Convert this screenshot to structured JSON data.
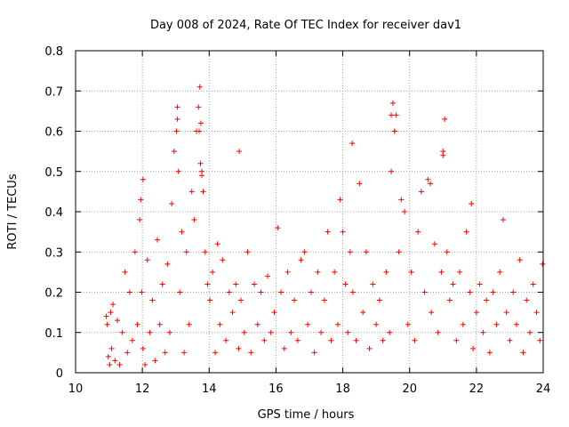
{
  "chart_data": {
    "type": "scatter",
    "title": "Day 008 of 2024, Rate Of TEC Index for receiver dav1",
    "xlabel": "GPS time / hours",
    "ylabel": "ROTI / TECUs",
    "xlim": [
      10,
      24
    ],
    "ylim": [
      0,
      0.8
    ],
    "x_ticks": [
      "10",
      "12",
      "14",
      "16",
      "18",
      "20",
      "22",
      "24"
    ],
    "y_ticks": [
      "0",
      "0.1",
      "0.2",
      "0.3",
      "0.4",
      "0.5",
      "0.6",
      "0.7",
      "0.8"
    ],
    "grid": true,
    "marker": "+",
    "colors": {
      "points": "#ff0000"
    },
    "series": [
      {
        "x": [
          10.92,
          10.95,
          10.98,
          11.02,
          11.05,
          11.08,
          11.12,
          11.18,
          11.25,
          11.32,
          11.4,
          11.48,
          11.55,
          11.62,
          11.7,
          11.78,
          11.85,
          11.92,
          11.95,
          11.98,
          12.02,
          12.08,
          12.15,
          12.22,
          12.3,
          12.38,
          12.45,
          12.52,
          12.6,
          12.68,
          12.75,
          12.82,
          12.88,
          12.95,
          13.02,
          13.05,
          13.08,
          13.12,
          13.18,
          13.25,
          13.32,
          13.4,
          13.48,
          13.55,
          13.62,
          13.68,
          13.72,
          13.75,
          13.78,
          13.82,
          13.88,
          13.95,
          14.02,
          14.1,
          14.18,
          14.25,
          14.32,
          14.4,
          14.5,
          14.6,
          14.7,
          14.8,
          14.88,
          14.95,
          15.05,
          15.15,
          15.25,
          15.35,
          15.45,
          15.55,
          15.65,
          15.75,
          15.85,
          15.95,
          16.05,
          16.15,
          16.25,
          16.35,
          16.45,
          16.55,
          16.65,
          16.75,
          16.85,
          16.95,
          17.05,
          17.15,
          17.25,
          17.35,
          17.45,
          17.55,
          17.65,
          17.75,
          17.85,
          17.92,
          18.0,
          18.08,
          18.15,
          18.22,
          18.3,
          18.4,
          18.5,
          18.6,
          18.7,
          18.8,
          18.9,
          19.0,
          19.1,
          19.2,
          19.3,
          19.4,
          19.45,
          19.5,
          19.55,
          19.6,
          19.68,
          19.75,
          19.85,
          19.95,
          20.05,
          20.15,
          20.25,
          20.35,
          20.45,
          20.55,
          20.65,
          20.75,
          20.85,
          20.95,
          21.0,
          21.05,
          21.12,
          21.2,
          21.3,
          21.4,
          21.5,
          21.6,
          21.7,
          21.8,
          21.9,
          22.0,
          22.1,
          22.2,
          22.3,
          22.4,
          22.5,
          22.6,
          22.7,
          22.8,
          22.9,
          23.0,
          23.1,
          23.2,
          23.3,
          23.4,
          23.5,
          23.6,
          23.7,
          23.8,
          23.9,
          23.98,
          12.02,
          13.05,
          13.7,
          13.74,
          13.78,
          14.9,
          18.28,
          19.45,
          19.55,
          21.0,
          20.62,
          21.85
        ],
        "y": [
          0.14,
          0.12,
          0.04,
          0.02,
          0.15,
          0.06,
          0.17,
          0.03,
          0.13,
          0.02,
          0.1,
          0.25,
          0.05,
          0.2,
          0.08,
          0.3,
          0.12,
          0.38,
          0.43,
          0.2,
          0.06,
          0.02,
          0.28,
          0.1,
          0.18,
          0.03,
          0.33,
          0.12,
          0.22,
          0.05,
          0.27,
          0.1,
          0.42,
          0.55,
          0.6,
          0.63,
          0.5,
          0.2,
          0.35,
          0.05,
          0.3,
          0.12,
          0.45,
          0.38,
          0.6,
          0.66,
          0.71,
          0.62,
          0.5,
          0.45,
          0.3,
          0.22,
          0.18,
          0.25,
          0.05,
          0.32,
          0.12,
          0.28,
          0.08,
          0.2,
          0.15,
          0.22,
          0.06,
          0.18,
          0.1,
          0.3,
          0.05,
          0.22,
          0.12,
          0.2,
          0.08,
          0.24,
          0.1,
          0.15,
          0.36,
          0.2,
          0.06,
          0.25,
          0.1,
          0.18,
          0.08,
          0.28,
          0.3,
          0.12,
          0.2,
          0.05,
          0.25,
          0.1,
          0.18,
          0.35,
          0.08,
          0.25,
          0.12,
          0.43,
          0.35,
          0.22,
          0.1,
          0.3,
          0.2,
          0.08,
          0.47,
          0.15,
          0.3,
          0.06,
          0.22,
          0.12,
          0.18,
          0.08,
          0.25,
          0.1,
          0.5,
          0.67,
          0.6,
          0.64,
          0.3,
          0.43,
          0.4,
          0.12,
          0.25,
          0.08,
          0.35,
          0.45,
          0.2,
          0.48,
          0.15,
          0.32,
          0.1,
          0.25,
          0.55,
          0.63,
          0.3,
          0.18,
          0.22,
          0.08,
          0.25,
          0.12,
          0.35,
          0.2,
          0.06,
          0.15,
          0.22,
          0.1,
          0.18,
          0.05,
          0.2,
          0.12,
          0.25,
          0.38,
          0.15,
          0.08,
          0.2,
          0.12,
          0.28,
          0.05,
          0.18,
          0.1,
          0.22,
          0.15,
          0.08,
          0.27,
          0.48,
          0.66,
          0.6,
          0.52,
          0.49,
          0.55,
          0.57,
          0.64,
          0.6,
          0.54,
          0.47,
          0.42
        ]
      }
    ]
  }
}
